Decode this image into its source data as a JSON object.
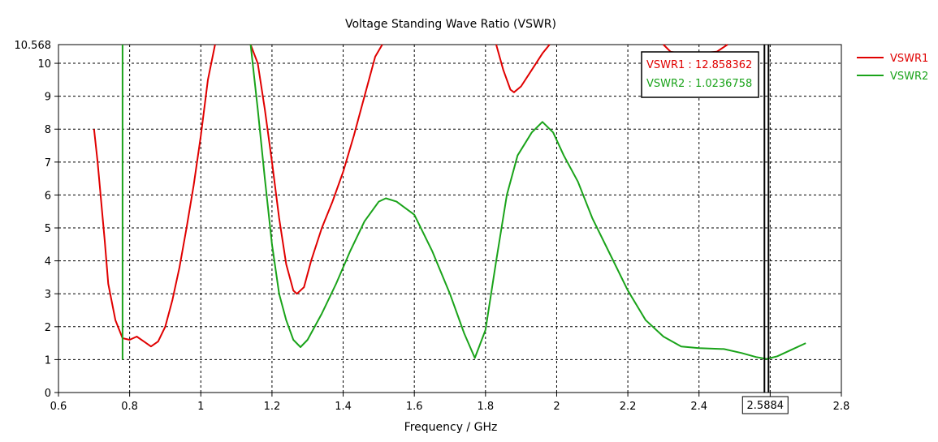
{
  "chart_data": {
    "type": "line",
    "title": "Voltage Standing Wave Ratio (VSWR)",
    "xlabel": "Frequency / GHz",
    "ylabel": "",
    "xlim": [
      0.6,
      2.8
    ],
    "ylim": [
      0,
      10.568
    ],
    "x_ticks": [
      "0.6",
      "0.8",
      "1",
      "1.2",
      "1.4",
      "1.6",
      "1.8",
      "2",
      "2.2",
      "2.4",
      "2.6",
      "2.8"
    ],
    "y_ticks": [
      "0",
      "1",
      "2",
      "3",
      "4",
      "5",
      "6",
      "7",
      "8",
      "9",
      "10"
    ],
    "y_top_label": "10.568",
    "grid": true,
    "legend_position": "right",
    "series": [
      {
        "name": "VSWR1",
        "color": "#e00000",
        "segments": [
          [
            [
              0.7,
              8.0
            ],
            [
              0.71,
              7.0
            ],
            [
              0.72,
              5.8
            ],
            [
              0.73,
              4.6
            ],
            [
              0.74,
              3.3
            ],
            [
              0.76,
              2.2
            ],
            [
              0.78,
              1.65
            ],
            [
              0.8,
              1.6
            ],
            [
              0.82,
              1.7
            ],
            [
              0.84,
              1.55
            ],
            [
              0.86,
              1.4
            ],
            [
              0.88,
              1.55
            ],
            [
              0.9,
              2.0
            ],
            [
              0.92,
              2.8
            ],
            [
              0.94,
              3.8
            ],
            [
              0.96,
              5.0
            ],
            [
              0.98,
              6.3
            ],
            [
              1.0,
              7.8
            ],
            [
              1.02,
              9.5
            ],
            [
              1.04,
              10.568
            ]
          ],
          [
            [
              1.14,
              10.568
            ],
            [
              1.16,
              10.0
            ],
            [
              1.18,
              8.6
            ],
            [
              1.2,
              7.0
            ],
            [
              1.22,
              5.3
            ],
            [
              1.24,
              3.9
            ],
            [
              1.26,
              3.1
            ],
            [
              1.27,
              3.0
            ],
            [
              1.29,
              3.2
            ],
            [
              1.31,
              4.0
            ],
            [
              1.34,
              5.0
            ],
            [
              1.37,
              5.8
            ],
            [
              1.4,
              6.7
            ],
            [
              1.43,
              7.8
            ],
            [
              1.46,
              9.0
            ],
            [
              1.49,
              10.2
            ],
            [
              1.51,
              10.568
            ]
          ],
          [
            [
              1.83,
              10.568
            ],
            [
              1.85,
              9.8
            ],
            [
              1.87,
              9.2
            ],
            [
              1.88,
              9.12
            ],
            [
              1.9,
              9.3
            ],
            [
              1.93,
              9.8
            ],
            [
              1.96,
              10.3
            ],
            [
              1.98,
              10.568
            ]
          ],
          [
            [
              2.3,
              10.568
            ],
            [
              2.32,
              10.35
            ],
            [
              2.35,
              10.3
            ],
            [
              2.4,
              10.3
            ],
            [
              2.45,
              10.35
            ],
            [
              2.48,
              10.568
            ]
          ]
        ]
      },
      {
        "name": "VSWR2",
        "color": "#1aa31a",
        "segments": [
          [
            [
              0.78,
              10.568
            ],
            [
              0.78,
              1.0
            ]
          ],
          [
            [
              1.14,
              10.568
            ],
            [
              1.16,
              8.6
            ],
            [
              1.18,
              6.5
            ],
            [
              1.2,
              4.5
            ],
            [
              1.22,
              3.0
            ],
            [
              1.24,
              2.2
            ],
            [
              1.26,
              1.6
            ],
            [
              1.28,
              1.38
            ],
            [
              1.3,
              1.6
            ],
            [
              1.34,
              2.4
            ],
            [
              1.38,
              3.3
            ],
            [
              1.42,
              4.3
            ],
            [
              1.46,
              5.2
            ],
            [
              1.5,
              5.8
            ],
            [
              1.52,
              5.9
            ],
            [
              1.55,
              5.8
            ],
            [
              1.6,
              5.4
            ],
            [
              1.65,
              4.3
            ],
            [
              1.7,
              3.0
            ],
            [
              1.74,
              1.8
            ],
            [
              1.77,
              1.05
            ],
            [
              1.8,
              1.9
            ],
            [
              1.83,
              4.0
            ],
            [
              1.86,
              6.0
            ],
            [
              1.89,
              7.2
            ],
            [
              1.93,
              7.9
            ],
            [
              1.96,
              8.22
            ],
            [
              1.99,
              7.9
            ],
            [
              2.02,
              7.2
            ],
            [
              2.06,
              6.4
            ],
            [
              2.1,
              5.3
            ],
            [
              2.15,
              4.2
            ],
            [
              2.2,
              3.1
            ],
            [
              2.25,
              2.2
            ],
            [
              2.3,
              1.7
            ],
            [
              2.35,
              1.4
            ],
            [
              2.4,
              1.35
            ],
            [
              2.47,
              1.32
            ],
            [
              2.52,
              1.2
            ],
            [
              2.56,
              1.08
            ],
            [
              2.59,
              1.02
            ],
            [
              2.62,
              1.1
            ],
            [
              2.66,
              1.3
            ],
            [
              2.7,
              1.5
            ]
          ]
        ]
      }
    ],
    "marker": {
      "x_label": "2.5884",
      "x": 2.5884,
      "readouts": [
        {
          "label": "VSWR1 : 12.858362",
          "color": "#e00000"
        },
        {
          "label": "VSWR2 : 1.0236758",
          "color": "#1aa31a"
        }
      ]
    }
  }
}
